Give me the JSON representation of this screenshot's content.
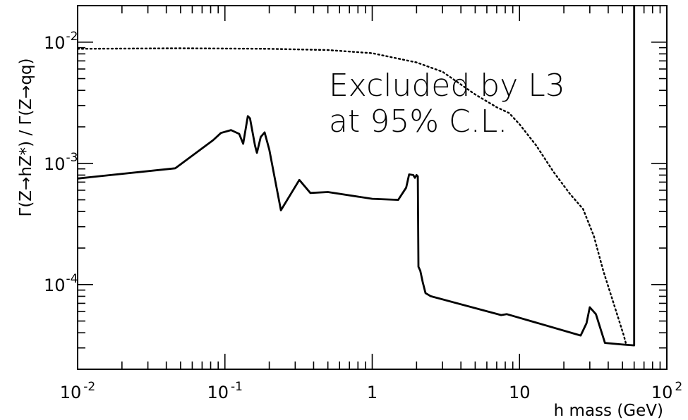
{
  "chart_data": {
    "type": "line",
    "xscale": "log",
    "yscale": "log",
    "xlim": [
      0.01,
      100
    ],
    "ylim": [
      2e-05,
      0.02
    ],
    "xlabel": "h mass (GeV)",
    "ylabel": "Γ(Z→hZ*) / Γ(Z→qq)",
    "annotation_lines": [
      "Excluded by L3",
      "at 95% C.L."
    ],
    "x_ticks": [
      {
        "value": 0.01,
        "base": "10",
        "exp": "-2"
      },
      {
        "value": 0.1,
        "base": "10",
        "exp": "-1"
      },
      {
        "value": 1,
        "base": "1",
        "exp": ""
      },
      {
        "value": 10,
        "base": "10",
        "exp": ""
      },
      {
        "value": 100,
        "base": "10",
        "exp": "2"
      }
    ],
    "y_ticks": [
      {
        "value": 0.01,
        "base": "10",
        "exp": "-2"
      },
      {
        "value": 0.001,
        "base": "10",
        "exp": "-3"
      },
      {
        "value": 0.0001,
        "base": "10",
        "exp": "-4"
      }
    ],
    "series": [
      {
        "style": "solid",
        "color": "#000000",
        "points": [
          [
            0.01,
            0.00075
          ],
          [
            0.046,
            0.00091
          ],
          [
            0.083,
            0.00155
          ],
          [
            0.094,
            0.00178
          ],
          [
            0.11,
            0.00188
          ],
          [
            0.125,
            0.00175
          ],
          [
            0.133,
            0.00145
          ],
          [
            0.143,
            0.00245
          ],
          [
            0.148,
            0.00235
          ],
          [
            0.16,
            0.0014
          ],
          [
            0.165,
            0.00122
          ],
          [
            0.175,
            0.00165
          ],
          [
            0.186,
            0.0018
          ],
          [
            0.2,
            0.0013
          ],
          [
            0.24,
            0.00041
          ],
          [
            0.32,
            0.00073
          ],
          [
            0.38,
            0.00057
          ],
          [
            0.5,
            0.00058
          ],
          [
            1.0,
            0.00051
          ],
          [
            1.5,
            0.0005
          ],
          [
            1.7,
            0.00063
          ],
          [
            1.78,
            0.00081
          ],
          [
            1.9,
            0.0008
          ],
          [
            1.95,
            0.00076
          ],
          [
            2.0,
            0.0008
          ],
          [
            2.04,
            0.00078
          ],
          [
            2.06,
            0.00014
          ],
          [
            2.12,
            0.00013
          ],
          [
            2.2,
            0.000105
          ],
          [
            2.3,
            8.5e-05
          ],
          [
            2.5,
            8e-05
          ],
          [
            7.5,
            5.6e-05
          ],
          [
            8.2,
            5.7e-05
          ],
          [
            26,
            3.8e-05
          ],
          [
            28.5,
            4.8e-05
          ],
          [
            30,
            6.5e-05
          ],
          [
            33,
            5.7e-05
          ],
          [
            38,
            3.3e-05
          ],
          [
            50,
            3.2e-05
          ],
          [
            60,
            3.15e-05
          ],
          [
            60,
            0.02
          ]
        ]
      },
      {
        "style": "dotted",
        "color": "#000000",
        "points": [
          [
            0.01,
            0.0088
          ],
          [
            0.05,
            0.0089
          ],
          [
            0.2,
            0.0088
          ],
          [
            0.5,
            0.0086
          ],
          [
            1.0,
            0.0081
          ],
          [
            2.0,
            0.0068
          ],
          [
            3.0,
            0.0057
          ],
          [
            5.0,
            0.0037
          ],
          [
            7.0,
            0.0029
          ],
          [
            8.5,
            0.0026
          ],
          [
            10.0,
            0.0021
          ],
          [
            13.0,
            0.0014
          ],
          [
            17.0,
            0.00085
          ],
          [
            22.0,
            0.00056
          ],
          [
            27.0,
            0.00042
          ],
          [
            32.0,
            0.00025
          ],
          [
            37.0,
            0.00013
          ],
          [
            42.0,
            8e-05
          ],
          [
            47.0,
            5.2e-05
          ],
          [
            51.0,
            3.8e-05
          ],
          [
            53.0,
            3.2e-05
          ]
        ]
      }
    ]
  }
}
